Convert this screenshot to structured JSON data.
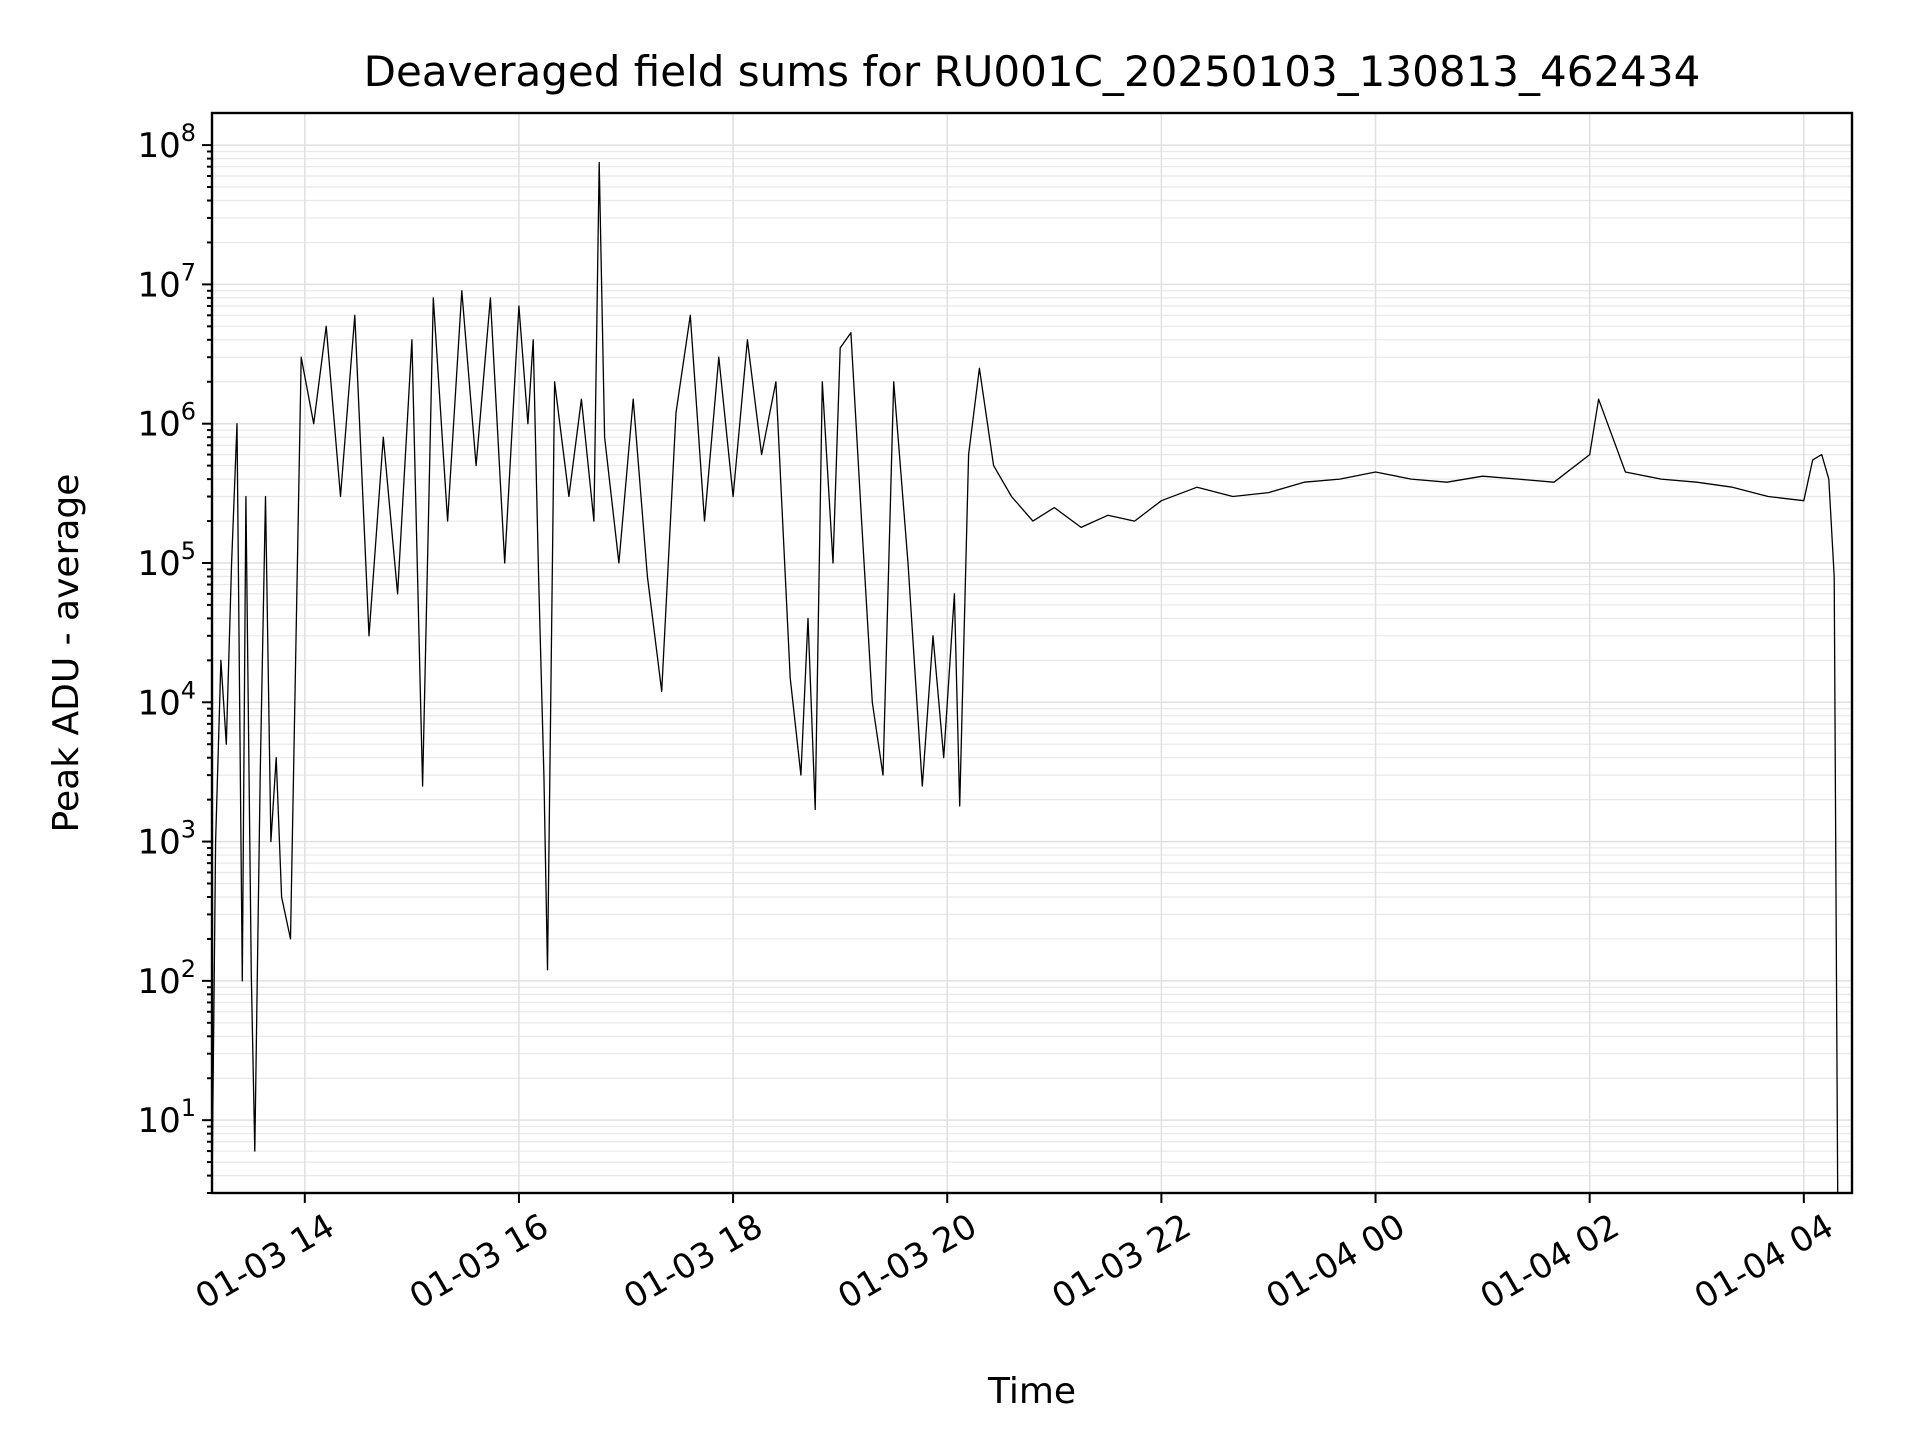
{
  "chart_data": {
    "type": "line",
    "title": "Deaveraged field sums for RU001C_20250103_130813_462434",
    "xlabel": "Time",
    "ylabel": "Peak ADU - average",
    "yscale": "log",
    "ylim": [
      3,
      170000000
    ],
    "xlim": [
      "2025-01-03 13:08",
      "2025-01-04 04:27"
    ],
    "grid": true,
    "series_color": "#000000",
    "x_ticks": [
      {
        "t": "2025-01-03 14:00",
        "label": "01-03 14"
      },
      {
        "t": "2025-01-03 16:00",
        "label": "01-03 16"
      },
      {
        "t": "2025-01-03 18:00",
        "label": "01-03 18"
      },
      {
        "t": "2025-01-03 20:00",
        "label": "01-03 20"
      },
      {
        "t": "2025-01-03 22:00",
        "label": "01-03 22"
      },
      {
        "t": "2025-01-04 00:00",
        "label": "01-04 00"
      },
      {
        "t": "2025-01-04 02:00",
        "label": "01-04 02"
      },
      {
        "t": "2025-01-04 04:00",
        "label": "01-04 04"
      }
    ],
    "y_ticks": [
      {
        "value": 10,
        "base": "10",
        "exp": "1"
      },
      {
        "value": 100,
        "base": "10",
        "exp": "2"
      },
      {
        "value": 1000,
        "base": "10",
        "exp": "3"
      },
      {
        "value": 10000,
        "base": "10",
        "exp": "4"
      },
      {
        "value": 100000,
        "base": "10",
        "exp": "5"
      },
      {
        "value": 1000000,
        "base": "10",
        "exp": "6"
      },
      {
        "value": 10000000,
        "base": "10",
        "exp": "7"
      },
      {
        "value": 100000000,
        "base": "10",
        "exp": "8"
      }
    ],
    "series": [
      {
        "points": [
          [
            "2025-01-03 13:08",
            3
          ],
          [
            "2025-01-03 13:10",
            1000
          ],
          [
            "2025-01-03 13:13",
            20000
          ],
          [
            "2025-01-03 13:16",
            5000
          ],
          [
            "2025-01-03 13:19",
            100000
          ],
          [
            "2025-01-03 13:22",
            1000000
          ],
          [
            "2025-01-03 13:25",
            100
          ],
          [
            "2025-01-03 13:27",
            300000
          ],
          [
            "2025-01-03 13:30",
            110
          ],
          [
            "2025-01-03 13:32",
            6
          ],
          [
            "2025-01-03 13:35",
            3000
          ],
          [
            "2025-01-03 13:38",
            300000
          ],
          [
            "2025-01-03 13:41",
            1000
          ],
          [
            "2025-01-03 13:44",
            4000
          ],
          [
            "2025-01-03 13:47",
            400
          ],
          [
            "2025-01-03 13:52",
            200
          ],
          [
            "2025-01-03 13:58",
            3000000
          ],
          [
            "2025-01-03 14:05",
            1000000
          ],
          [
            "2025-01-03 14:12",
            5000000
          ],
          [
            "2025-01-03 14:20",
            300000
          ],
          [
            "2025-01-03 14:28",
            6000000
          ],
          [
            "2025-01-03 14:36",
            30000
          ],
          [
            "2025-01-03 14:44",
            800000
          ],
          [
            "2025-01-03 14:52",
            60000
          ],
          [
            "2025-01-03 15:00",
            4000000
          ],
          [
            "2025-01-03 15:06",
            2500
          ],
          [
            "2025-01-03 15:12",
            8000000
          ],
          [
            "2025-01-03 15:20",
            200000
          ],
          [
            "2025-01-03 15:28",
            9000000
          ],
          [
            "2025-01-03 15:36",
            500000
          ],
          [
            "2025-01-03 15:44",
            8000000
          ],
          [
            "2025-01-03 15:52",
            100000
          ],
          [
            "2025-01-03 16:00",
            7000000
          ],
          [
            "2025-01-03 16:05",
            1000000
          ],
          [
            "2025-01-03 16:08",
            4000000
          ],
          [
            "2025-01-03 16:11",
            80000
          ],
          [
            "2025-01-03 16:14",
            3000
          ],
          [
            "2025-01-03 16:16",
            120
          ],
          [
            "2025-01-03 16:20",
            2000000
          ],
          [
            "2025-01-03 16:28",
            300000
          ],
          [
            "2025-01-03 16:35",
            1500000
          ],
          [
            "2025-01-03 16:42",
            200000
          ],
          [
            "2025-01-03 16:45",
            75000000
          ],
          [
            "2025-01-03 16:48",
            800000
          ],
          [
            "2025-01-03 16:56",
            100000
          ],
          [
            "2025-01-03 17:04",
            1500000
          ],
          [
            "2025-01-03 17:12",
            80000
          ],
          [
            "2025-01-03 17:20",
            12000
          ],
          [
            "2025-01-03 17:28",
            1200000
          ],
          [
            "2025-01-03 17:36",
            6000000
          ],
          [
            "2025-01-03 17:44",
            200000
          ],
          [
            "2025-01-03 17:52",
            3000000
          ],
          [
            "2025-01-03 18:00",
            300000
          ],
          [
            "2025-01-03 18:08",
            4000000
          ],
          [
            "2025-01-03 18:16",
            600000
          ],
          [
            "2025-01-03 18:24",
            2000000
          ],
          [
            "2025-01-03 18:32",
            15000
          ],
          [
            "2025-01-03 18:38",
            3000
          ],
          [
            "2025-01-03 18:42",
            40000
          ],
          [
            "2025-01-03 18:46",
            1700
          ],
          [
            "2025-01-03 18:50",
            2000000
          ],
          [
            "2025-01-03 18:56",
            100000
          ],
          [
            "2025-01-03 19:00",
            3500000
          ],
          [
            "2025-01-03 19:06",
            4500000
          ],
          [
            "2025-01-03 19:12",
            200000
          ],
          [
            "2025-01-03 19:18",
            10000
          ],
          [
            "2025-01-03 19:24",
            3000
          ],
          [
            "2025-01-03 19:30",
            2000000
          ],
          [
            "2025-01-03 19:38",
            100000
          ],
          [
            "2025-01-03 19:46",
            2500
          ],
          [
            "2025-01-03 19:52",
            30000
          ],
          [
            "2025-01-03 19:58",
            4000
          ],
          [
            "2025-01-03 20:04",
            60000
          ],
          [
            "2025-01-03 20:07",
            1800
          ],
          [
            "2025-01-03 20:12",
            600000
          ],
          [
            "2025-01-03 20:18",
            2500000
          ],
          [
            "2025-01-03 20:26",
            500000
          ],
          [
            "2025-01-03 20:36",
            300000
          ],
          [
            "2025-01-03 20:48",
            200000
          ],
          [
            "2025-01-03 21:00",
            250000
          ],
          [
            "2025-01-03 21:15",
            180000
          ],
          [
            "2025-01-03 21:30",
            220000
          ],
          [
            "2025-01-03 21:45",
            200000
          ],
          [
            "2025-01-03 22:00",
            280000
          ],
          [
            "2025-01-03 22:20",
            350000
          ],
          [
            "2025-01-03 22:40",
            300000
          ],
          [
            "2025-01-03 23:00",
            320000
          ],
          [
            "2025-01-03 23:20",
            380000
          ],
          [
            "2025-01-03 23:40",
            400000
          ],
          [
            "2025-01-04 00:00",
            450000
          ],
          [
            "2025-01-04 00:20",
            400000
          ],
          [
            "2025-01-04 00:40",
            380000
          ],
          [
            "2025-01-04 01:00",
            420000
          ],
          [
            "2025-01-04 01:20",
            400000
          ],
          [
            "2025-01-04 01:40",
            380000
          ],
          [
            "2025-01-04 02:00",
            600000
          ],
          [
            "2025-01-04 02:05",
            1500000
          ],
          [
            "2025-01-04 02:20",
            450000
          ],
          [
            "2025-01-04 02:40",
            400000
          ],
          [
            "2025-01-04 03:00",
            380000
          ],
          [
            "2025-01-04 03:20",
            350000
          ],
          [
            "2025-01-04 03:40",
            300000
          ],
          [
            "2025-01-04 04:00",
            280000
          ],
          [
            "2025-01-04 04:05",
            550000
          ],
          [
            "2025-01-04 04:10",
            600000
          ],
          [
            "2025-01-04 04:14",
            400000
          ],
          [
            "2025-01-04 04:17",
            80000
          ],
          [
            "2025-01-04 04:19",
            3
          ]
        ]
      }
    ]
  }
}
